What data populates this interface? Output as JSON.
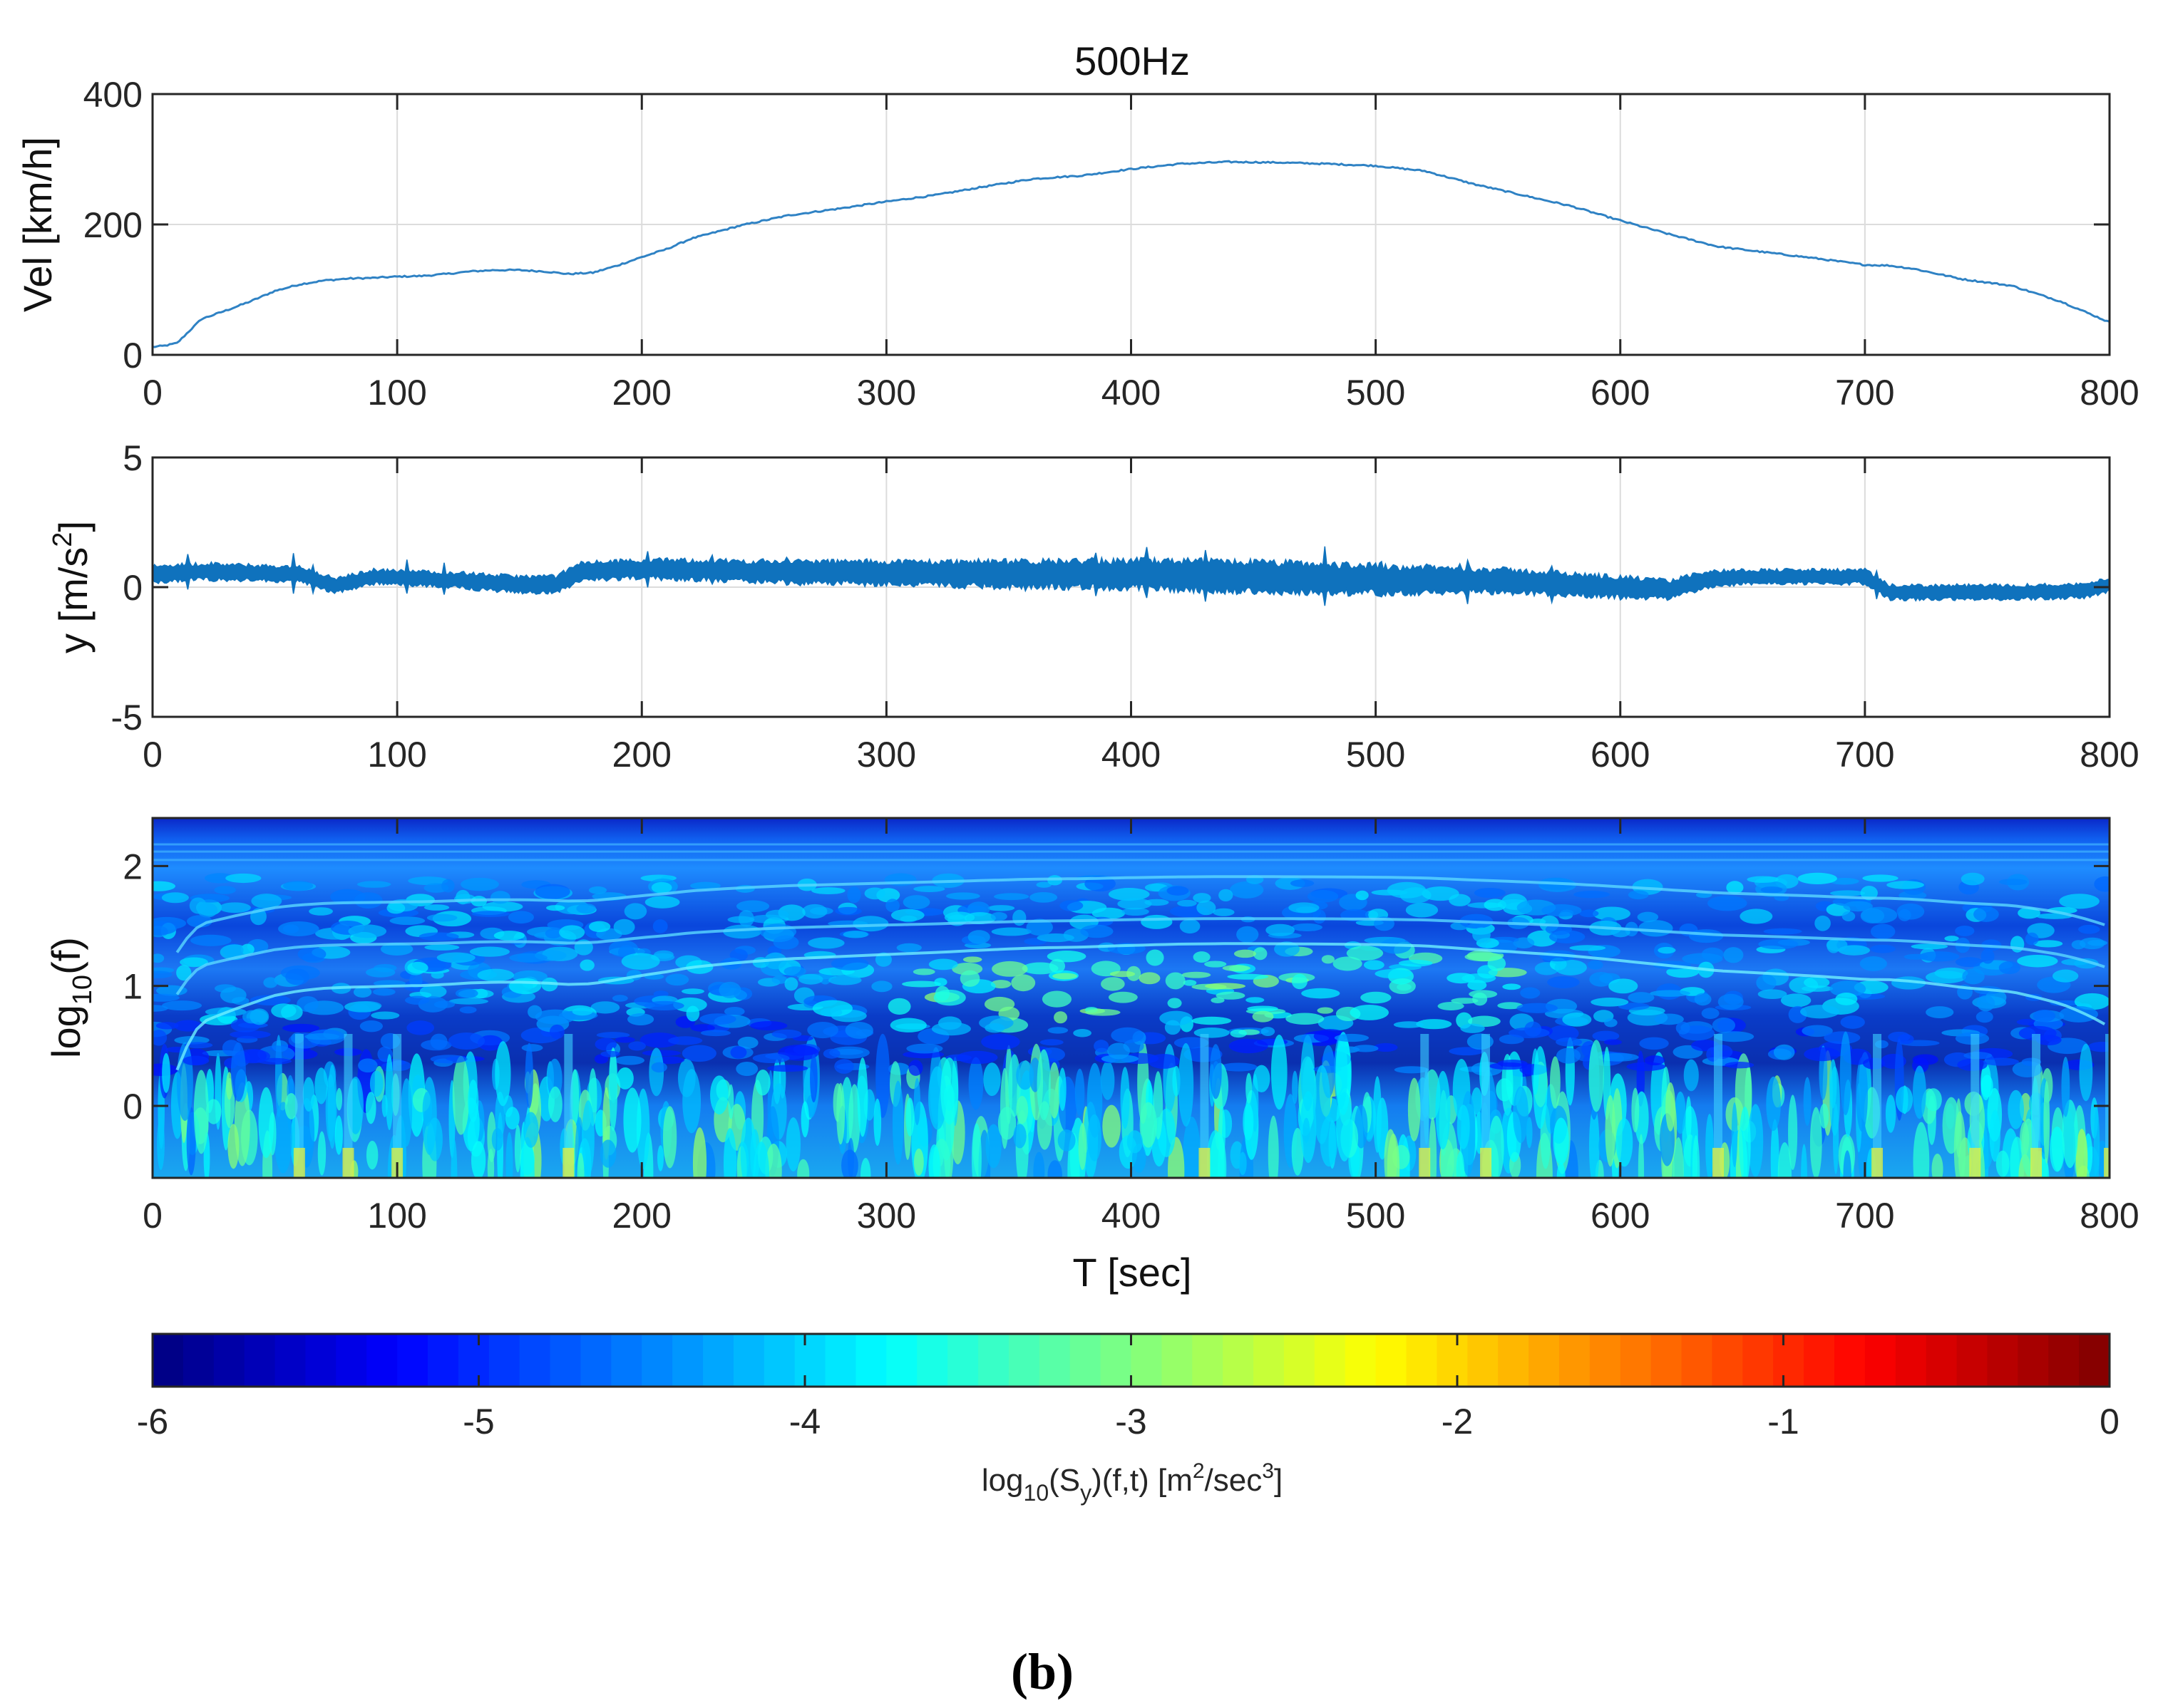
{
  "figure": {
    "title": "500Hz",
    "caption": "(b)",
    "caption_letter": "b"
  },
  "chart_data": [
    {
      "type": "line",
      "name": "velocity",
      "ylabel": "Vel [km/h]",
      "xlabel": "",
      "xlim": [
        0,
        800
      ],
      "ylim": [
        0,
        400
      ],
      "xticks": [
        0,
        100,
        200,
        300,
        400,
        500,
        600,
        700,
        800
      ],
      "yticks": [
        0,
        200,
        400
      ],
      "grid": true,
      "color": "#2f82c4",
      "series": [
        {
          "name": "Vel",
          "x": [
            0,
            5,
            10,
            20,
            30,
            40,
            50,
            60,
            70,
            80,
            90,
            100,
            110,
            120,
            130,
            140,
            150,
            160,
            170,
            180,
            190,
            200,
            210,
            220,
            240,
            260,
            280,
            300,
            320,
            340,
            360,
            380,
            400,
            420,
            440,
            460,
            480,
            500,
            520,
            540,
            560,
            580,
            600,
            620,
            640,
            660,
            680,
            700,
            710,
            720,
            740,
            760,
            780,
            800
          ],
          "values": [
            12,
            14,
            18,
            55,
            68,
            82,
            98,
            108,
            114,
            117,
            118,
            120,
            121,
            124,
            128,
            130,
            130,
            128,
            124,
            126,
            137,
            150,
            162,
            178,
            198,
            214,
            224,
            235,
            245,
            258,
            270,
            275,
            285,
            293,
            296,
            295,
            293,
            290,
            282,
            262,
            245,
            228,
            206,
            185,
            166,
            157,
            148,
            138,
            137,
            132,
            116,
            106,
            82,
            50
          ]
        }
      ]
    },
    {
      "type": "line",
      "name": "acceleration",
      "ylabel": "y [m/s2]",
      "xlabel": "",
      "xlim": [
        0,
        800
      ],
      "ylim": [
        -5,
        5
      ],
      "xticks": [
        0,
        100,
        200,
        300,
        400,
        500,
        600,
        700,
        800
      ],
      "yticks": [
        -5,
        0,
        5
      ],
      "grid": true,
      "color": "#0f72bd",
      "series": [
        {
          "name": "y",
          "mean_x": [
            0,
            20,
            40,
            60,
            75,
            90,
            120,
            150,
            165,
            175,
            200,
            250,
            300,
            350,
            400,
            450,
            500,
            550,
            600,
            620,
            635,
            650,
            700,
            710,
            750,
            790,
            800
          ],
          "mean": [
            0.5,
            0.6,
            0.55,
            0.5,
            0.05,
            0.4,
            0.3,
            0.1,
            0.1,
            0.6,
            0.7,
            0.6,
            0.55,
            0.5,
            0.5,
            0.4,
            0.3,
            0.25,
            0.0,
            -0.1,
            0.3,
            0.4,
            0.4,
            -0.2,
            -0.2,
            -0.15,
            0.1
          ],
          "amp_x": [
            0,
            100,
            200,
            300,
            400,
            450,
            500,
            550,
            600,
            650,
            700,
            800
          ],
          "amplitude": [
            0.35,
            0.3,
            0.4,
            0.5,
            0.6,
            0.65,
            0.6,
            0.5,
            0.45,
            0.3,
            0.3,
            0.3
          ]
        }
      ]
    },
    {
      "type": "heatmap",
      "name": "spectrogram",
      "ylabel": "log10(f)",
      "ylabel_main": "log",
      "ylabel_sub": "10",
      "ylabel_tail": "(f)",
      "xlabel": "T [sec]",
      "xlim": [
        0,
        800
      ],
      "ylim": [
        -0.6,
        2.4
      ],
      "xticks": [
        0,
        100,
        200,
        300,
        400,
        500,
        600,
        700,
        800
      ],
      "yticks": [
        0,
        1,
        2
      ],
      "colormap": "jet",
      "clim": [
        -6,
        0
      ],
      "bright_columns_sec": [
        60,
        80,
        100,
        170,
        430,
        520,
        545,
        640,
        705,
        745,
        770,
        800
      ]
    },
    {
      "type": "colorbar",
      "name": "colorbar",
      "clim": [
        -6,
        0
      ],
      "ticks": [
        -6,
        -5,
        -4,
        -3,
        -2,
        -1,
        0
      ],
      "label": "log10(Sy)(f,t) [m2/sec3]",
      "label_parts": {
        "a": "log",
        "b": "10",
        "c": "(S",
        "d": "y",
        "e": ")(f,t) [m",
        "f": "2",
        "g": "/sec",
        "h": "3",
        "i": "]"
      }
    }
  ],
  "tick_text": {
    "x": [
      "0",
      "100",
      "200",
      "300",
      "400",
      "500",
      "600",
      "700",
      "800"
    ],
    "vel_y": [
      "0",
      "200",
      "400"
    ],
    "acc_y": [
      "-5",
      "0",
      "5"
    ],
    "spec_y": [
      "0",
      "1",
      "2"
    ],
    "cb": [
      "-6",
      "-5",
      "-4",
      "-3",
      "-2",
      "-1",
      "0"
    ]
  },
  "labels": {
    "vel_y": "Vel [km/h]",
    "acc_y_main": "y [m/s",
    "acc_y_sup": "2",
    "acc_y_tail": "]",
    "x": "T [sec]"
  }
}
